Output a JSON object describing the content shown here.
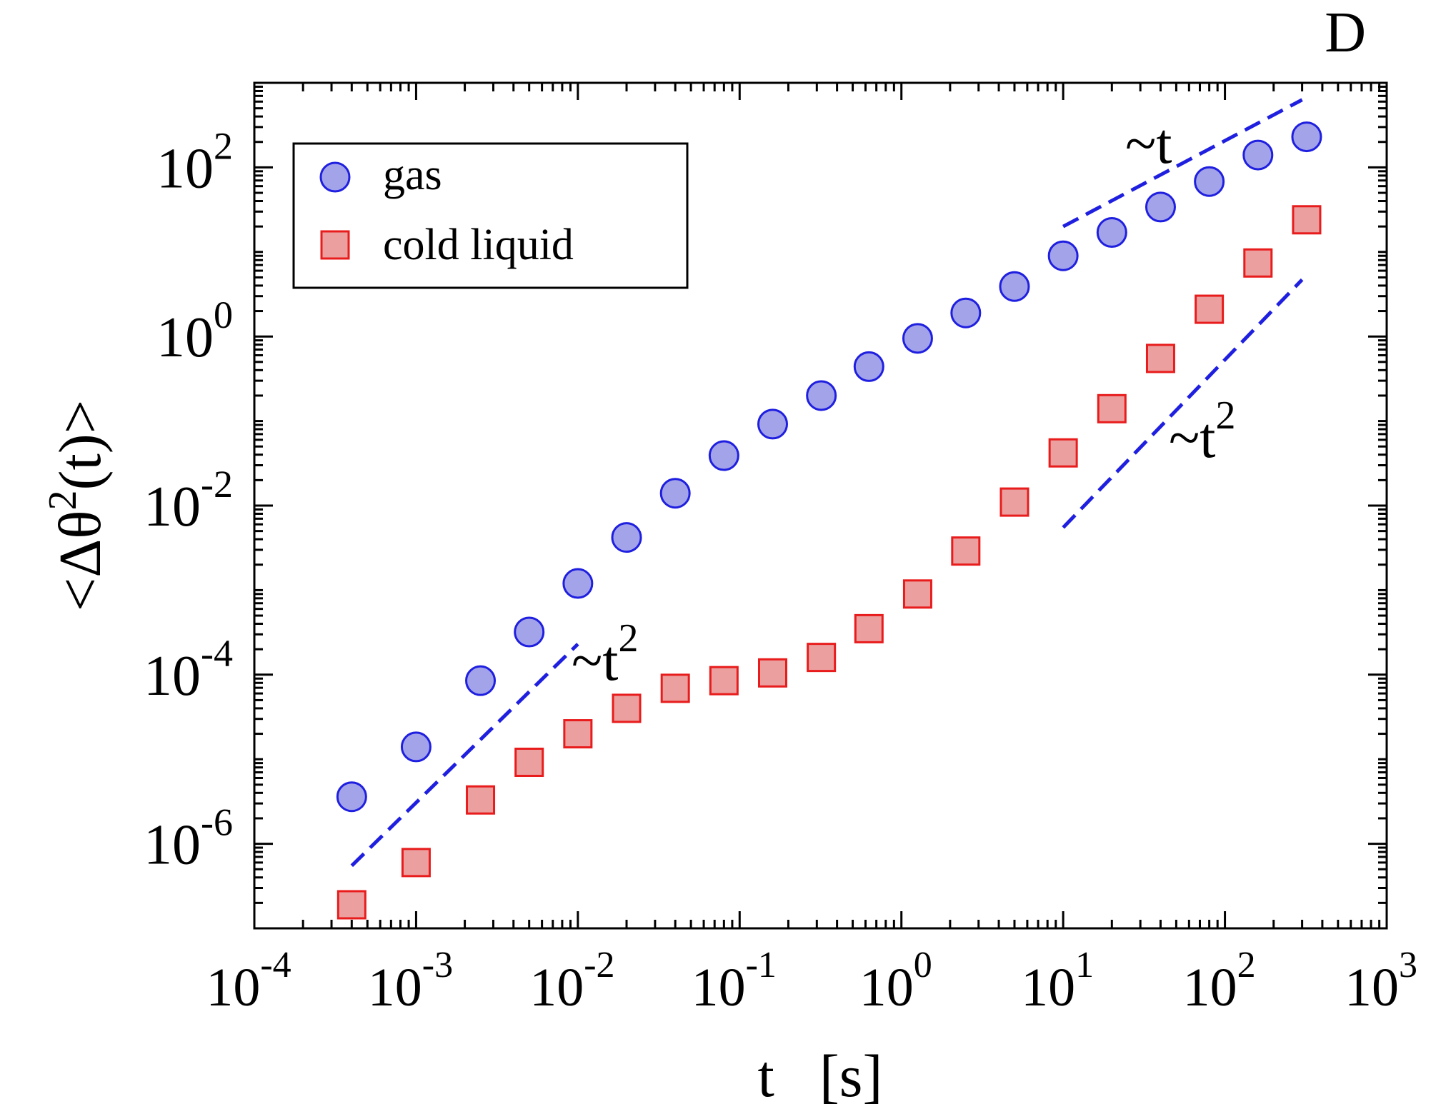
{
  "chart_data": {
    "type": "scatter",
    "panel_label": "D",
    "xlabel": "t   [s]",
    "ylabel": "<Δθ²(t)>",
    "ylabel_main": "<Δθ",
    "ylabel_sup": "2",
    "ylabel_tail": "(t)>",
    "xscale": "log",
    "yscale": "log",
    "xlim": [
      0.0001,
      1000
    ],
    "ylim": [
      1e-07,
      1000
    ],
    "x_tick_exponents": [
      "-4",
      "-3",
      "-2",
      "-1",
      "0",
      "1",
      "2",
      "3"
    ],
    "y_tick_exponents": [
      "-6",
      "-4",
      "-2",
      "0",
      "2"
    ],
    "tick_base": "10",
    "legend_position": "top-left",
    "series": [
      {
        "name": "gas",
        "marker": "circle",
        "color": "#1f1fe0",
        "x": [
          0.0004,
          0.001,
          0.0025,
          0.005,
          0.01,
          0.02,
          0.04,
          0.08,
          0.16,
          0.32,
          0.63,
          1.26,
          2.5,
          5,
          10,
          20,
          40,
          80,
          160,
          320
        ],
        "y": [
          3.6e-06,
          1.4e-05,
          8.5e-05,
          0.00032,
          0.0012,
          0.0042,
          0.014,
          0.039,
          0.092,
          0.2,
          0.44,
          0.95,
          1.9,
          3.9,
          9,
          17,
          34,
          68,
          140,
          230
        ]
      },
      {
        "name": "cold liquid",
        "marker": "square",
        "color": "#e81c1c",
        "x": [
          0.0004,
          0.001,
          0.0025,
          0.005,
          0.01,
          0.02,
          0.04,
          0.08,
          0.16,
          0.32,
          0.63,
          1.26,
          2.5,
          5,
          10,
          20,
          40,
          80,
          160,
          320
        ],
        "y": [
          1.9e-07,
          6e-07,
          3.3e-06,
          9.2e-06,
          2e-05,
          4e-05,
          6.9e-05,
          8.5e-05,
          0.000105,
          0.00016,
          0.00035,
          0.0009,
          0.0029,
          0.011,
          0.042,
          0.14,
          0.55,
          2.1,
          7.4,
          24
        ]
      }
    ],
    "guides": [
      {
        "label": "~t",
        "sup": "",
        "slope": 1,
        "from": [
          10,
          20
        ],
        "to": [
          300,
          630
        ]
      },
      {
        "label": "~t",
        "sup": "2",
        "slope": 2,
        "from": [
          0.0004,
          5.5e-07
        ],
        "to": [
          0.01,
          0.00023
        ]
      },
      {
        "label": "~t",
        "sup": "2",
        "slope": 2,
        "from": [
          10,
          0.0055
        ],
        "to": [
          300,
          4.7
        ]
      }
    ],
    "colors": {
      "guide": "#1f1fe0",
      "axis": "#000000"
    }
  }
}
